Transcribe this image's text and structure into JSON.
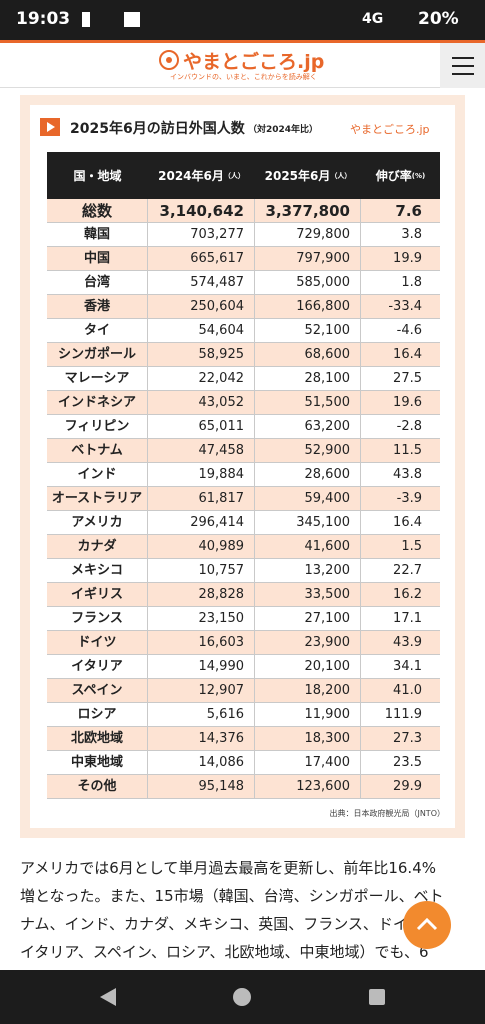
{
  "status_bar": {
    "time": "19:03",
    "network": "4G",
    "battery": "20%"
  },
  "header": {
    "logo": "やまとごころ.jp",
    "tagline": "インバウンドの、いまと、これからを読み解く"
  },
  "figure": {
    "title": "2025年6月の訪日外国人数",
    "title_note": "（対2024年比）",
    "logo": "やまとごころ.jp",
    "table": {
      "columns": [
        {
          "label": "国・地域",
          "unit": ""
        },
        {
          "label": "2024年6月",
          "unit": "（人）"
        },
        {
          "label": "2025年6月",
          "unit": "（人）"
        },
        {
          "label": "伸び率",
          "unit": "(%)"
        }
      ],
      "rows": [
        [
          "総数",
          "3,140,642",
          "3,377,800",
          "7.6"
        ],
        [
          "韓国",
          "703,277",
          "729,800",
          "3.8"
        ],
        [
          "中国",
          "665,617",
          "797,900",
          "19.9"
        ],
        [
          "台湾",
          "574,487",
          "585,000",
          "1.8"
        ],
        [
          "香港",
          "250,604",
          "166,800",
          "-33.4"
        ],
        [
          "タイ",
          "54,604",
          "52,100",
          "-4.6"
        ],
        [
          "シンガポール",
          "58,925",
          "68,600",
          "16.4"
        ],
        [
          "マレーシア",
          "22,042",
          "28,100",
          "27.5"
        ],
        [
          "インドネシア",
          "43,052",
          "51,500",
          "19.6"
        ],
        [
          "フィリピン",
          "65,011",
          "63,200",
          "-2.8"
        ],
        [
          "ベトナム",
          "47,458",
          "52,900",
          "11.5"
        ],
        [
          "インド",
          "19,884",
          "28,600",
          "43.8"
        ],
        [
          "オーストラリア",
          "61,817",
          "59,400",
          "-3.9"
        ],
        [
          "アメリカ",
          "296,414",
          "345,100",
          "16.4"
        ],
        [
          "カナダ",
          "40,989",
          "41,600",
          "1.5"
        ],
        [
          "メキシコ",
          "10,757",
          "13,200",
          "22.7"
        ],
        [
          "イギリス",
          "28,828",
          "33,500",
          "16.2"
        ],
        [
          "フランス",
          "23,150",
          "27,100",
          "17.1"
        ],
        [
          "ドイツ",
          "16,603",
          "23,900",
          "43.9"
        ],
        [
          "イタリア",
          "14,990",
          "20,100",
          "34.1"
        ],
        [
          "スペイン",
          "12,907",
          "18,200",
          "41.0"
        ],
        [
          "ロシア",
          "5,616",
          "11,900",
          "111.9"
        ],
        [
          "北欧地域",
          "14,376",
          "18,300",
          "27.3"
        ],
        [
          "中東地域",
          "14,086",
          "17,400",
          "23.5"
        ],
        [
          "その他",
          "95,148",
          "123,600",
          "29.9"
        ]
      ]
    },
    "source": "出典：日本政府観光局（JNTO）"
  },
  "article": {
    "lines": [
      "アメリカでは6月として単月過去最高を更新し、前年比16.4%",
      "増となった。また、15市場（韓国、台湾、シンガポール、ベト",
      "ナム、インド、カナダ、メキシコ、英国、フランス、ドイツ、",
      "イタリア、スペイン、ロシア、北欧地域、中東地域）でも、6"
    ]
  }
}
